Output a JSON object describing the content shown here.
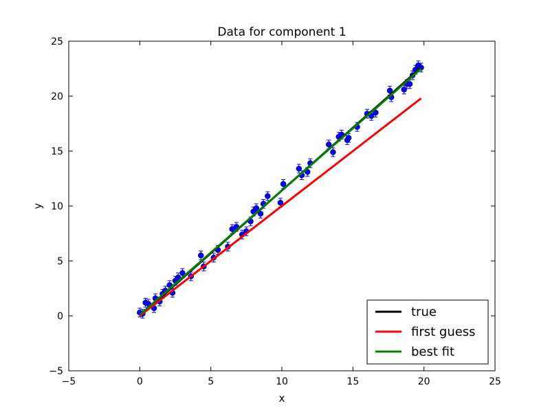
{
  "chart_data": {
    "type": "scatter",
    "title": "Data for component 1",
    "xlabel": "x",
    "ylabel": "y",
    "xlim": [
      -5,
      25
    ],
    "ylim": [
      -5,
      25
    ],
    "xticks": [
      -5,
      0,
      5,
      10,
      15,
      20,
      25
    ],
    "yticks": [
      -5,
      0,
      5,
      10,
      15,
      20,
      25
    ],
    "grid": false,
    "legend_position": "lower-right",
    "series": [
      {
        "name": "data",
        "kind": "errorbar-points",
        "color": "#0000ff",
        "yerr": 0.4,
        "points": [
          [
            0.0,
            0.3
          ],
          [
            0.2,
            0.2
          ],
          [
            0.4,
            1.2
          ],
          [
            0.6,
            1.1
          ],
          [
            1.0,
            0.7
          ],
          [
            1.1,
            1.6
          ],
          [
            1.4,
            1.3
          ],
          [
            1.6,
            2.0
          ],
          [
            1.8,
            2.3
          ],
          [
            2.1,
            2.8
          ],
          [
            2.3,
            2.1
          ],
          [
            2.5,
            3.2
          ],
          [
            2.7,
            3.5
          ],
          [
            3.0,
            3.9
          ],
          [
            3.6,
            3.6
          ],
          [
            4.3,
            5.5
          ],
          [
            4.5,
            4.5
          ],
          [
            5.2,
            5.3
          ],
          [
            5.5,
            6.0
          ],
          [
            6.2,
            6.3
          ],
          [
            6.5,
            7.9
          ],
          [
            6.8,
            8.1
          ],
          [
            7.2,
            7.4
          ],
          [
            7.5,
            7.7
          ],
          [
            7.8,
            8.6
          ],
          [
            8.0,
            9.5
          ],
          [
            8.2,
            9.8
          ],
          [
            8.5,
            9.3
          ],
          [
            8.7,
            10.2
          ],
          [
            9.0,
            10.9
          ],
          [
            9.9,
            10.3
          ],
          [
            10.1,
            12.0
          ],
          [
            11.2,
            13.4
          ],
          [
            11.4,
            12.8
          ],
          [
            11.8,
            13.1
          ],
          [
            12.0,
            13.9
          ],
          [
            13.3,
            15.6
          ],
          [
            13.6,
            14.9
          ],
          [
            14.0,
            16.3
          ],
          [
            14.2,
            16.5
          ],
          [
            14.6,
            16.0
          ],
          [
            14.7,
            16.2
          ],
          [
            15.3,
            17.2
          ],
          [
            16.0,
            18.4
          ],
          [
            16.3,
            18.2
          ],
          [
            16.6,
            18.5
          ],
          [
            17.6,
            20.5
          ],
          [
            17.7,
            19.9
          ],
          [
            18.6,
            20.6
          ],
          [
            18.8,
            21.1
          ],
          [
            19.0,
            21.1
          ],
          [
            19.2,
            21.9
          ],
          [
            19.4,
            22.4
          ],
          [
            19.6,
            22.8
          ],
          [
            19.8,
            22.6
          ]
        ]
      },
      {
        "name": "true",
        "kind": "line",
        "color": "#000000",
        "points": [
          [
            0.0,
            0.0
          ],
          [
            19.8,
            22.6
          ]
        ]
      },
      {
        "name": "first guess",
        "kind": "line",
        "color": "#ff0000",
        "points": [
          [
            0.0,
            0.0
          ],
          [
            19.8,
            19.8
          ]
        ]
      },
      {
        "name": "best fit",
        "kind": "line",
        "color": "#008000",
        "points": [
          [
            0.0,
            0.1
          ],
          [
            19.8,
            22.5
          ]
        ]
      }
    ],
    "legend": [
      {
        "label": "true",
        "color": "#000000"
      },
      {
        "label": "first guess",
        "color": "#ff0000"
      },
      {
        "label": "best fit",
        "color": "#008000"
      }
    ]
  }
}
